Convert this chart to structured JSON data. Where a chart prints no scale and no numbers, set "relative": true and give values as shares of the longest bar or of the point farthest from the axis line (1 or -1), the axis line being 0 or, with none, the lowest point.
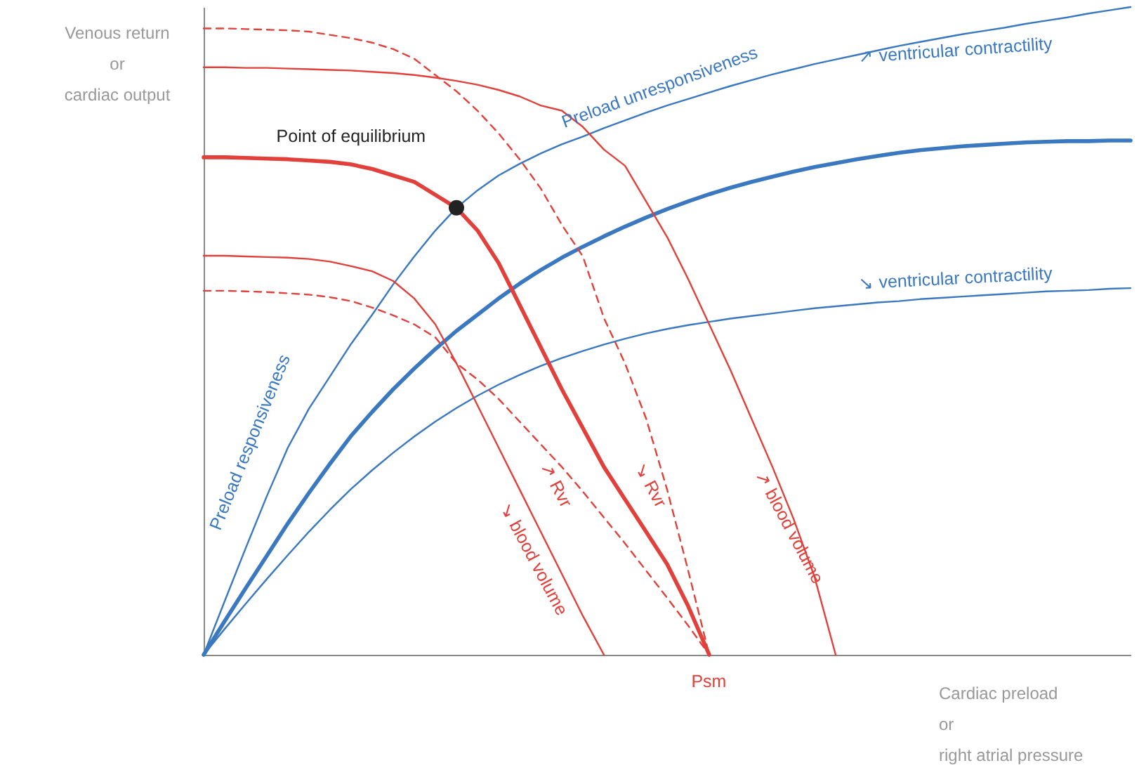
{
  "chart_data": {
    "type": "line",
    "relative": true,
    "xlabel": "Cardiac preload\nor\nright atrial pressure",
    "ylabel": "Venous return\nor\ncardiac output",
    "categories": [
      null,
      null,
      null,
      null,
      null,
      null,
      null,
      null,
      null,
      null,
      null,
      null,
      null,
      null,
      null,
      null,
      null,
      null,
      null,
      null,
      null,
      null,
      null,
      null,
      null,
      null,
      null,
      null,
      null,
      null,
      null,
      null,
      null,
      null,
      null,
      null,
      null,
      null,
      null,
      null,
      null,
      null,
      null,
      null,
      null
    ],
    "series": [
      {
        "color": "#3a78c0",
        "values": [
          0,
          0.083,
          0.165,
          0.245,
          0.32,
          0.38,
          0.43,
          0.48,
          0.525,
          0.572,
          0.615,
          0.655,
          0.69,
          0.717,
          0.74,
          0.758,
          0.774,
          0.788,
          0.8,
          0.813,
          0.825,
          0.837,
          0.848,
          0.858,
          0.868,
          0.878,
          0.887,
          0.896,
          0.904,
          0.912,
          0.919,
          0.926,
          0.933,
          0.94,
          0.946,
          0.952,
          0.958,
          0.963,
          0.968,
          0.974,
          0.979,
          0.984,
          0.99,
          0.995,
          1
        ]
      },
      {
        "color": "#3a78c0",
        "values": [
          0,
          0.052,
          0.103,
          0.153,
          0.203,
          0.25,
          0.295,
          0.338,
          0.375,
          0.41,
          0.442,
          0.472,
          0.5,
          0.525,
          0.55,
          0.573,
          0.594,
          0.613,
          0.63,
          0.646,
          0.661,
          0.675,
          0.688,
          0.7,
          0.711,
          0.721,
          0.73,
          0.738,
          0.746,
          0.753,
          0.759,
          0.765,
          0.77,
          0.775,
          0.779,
          0.782,
          0.785,
          0.787,
          0.789,
          0.791,
          0.792,
          0.793,
          0.793,
          0.794,
          0.794
        ]
      },
      {
        "color": "#3a78c0",
        "values": [
          0,
          0.04,
          0.079,
          0.117,
          0.154,
          0.19,
          0.224,
          0.256,
          0.285,
          0.312,
          0.337,
          0.36,
          0.381,
          0.4,
          0.417,
          0.432,
          0.446,
          0.458,
          0.469,
          0.479,
          0.488,
          0.496,
          0.503,
          0.509,
          0.514,
          0.519,
          0.523,
          0.527,
          0.531,
          0.535,
          0.538,
          0.541,
          0.544,
          0.546,
          0.549,
          0.551,
          0.553,
          0.555,
          0.557,
          0.559,
          0.561,
          0.562,
          0.563,
          0.565,
          0.566
        ]
      },
      {
        "color": "#e2403a",
        "values": [
          0.907,
          0.907,
          0.906,
          0.906,
          0.905,
          0.904,
          0.903,
          0.902,
          0.9,
          0.898,
          0.895,
          0.891,
          0.886,
          0.88,
          0.872,
          0.862,
          0.848,
          0.84,
          0.815,
          0.78,
          0.755,
          0.7,
          0.645,
          0.58,
          0.51,
          0.44,
          0.365,
          0.29,
          0.21,
          0.12,
          0,
          null,
          null,
          null,
          null,
          null,
          null,
          null,
          null,
          null,
          null,
          null,
          null,
          null,
          null
        ]
      },
      {
        "color": "#e2403a",
        "line_style": "dashed",
        "values": [
          0.967,
          0.967,
          0.966,
          0.965,
          0.964,
          0.962,
          0.957,
          0.952,
          0.945,
          0.935,
          0.92,
          0.895,
          0.87,
          0.84,
          0.805,
          0.765,
          0.72,
          0.664,
          0.615,
          0.52,
          0.45,
          0.365,
          0.255,
          0.13,
          0,
          null,
          null,
          null,
          null,
          null,
          null,
          null,
          null,
          null,
          null,
          null,
          null,
          null,
          null,
          null,
          null,
          null,
          null,
          null,
          null
        ]
      },
      {
        "color": "#e2403a",
        "values": [
          0.768,
          0.768,
          0.767,
          0.766,
          0.765,
          0.763,
          0.761,
          0.757,
          0.75,
          0.74,
          0.73,
          0.71,
          0.69,
          0.655,
          0.605,
          0.54,
          0.475,
          0.41,
          0.35,
          0.29,
          0.24,
          0.19,
          0.14,
          0.075,
          0,
          null,
          null,
          null,
          null,
          null,
          null,
          null,
          null,
          null,
          null,
          null,
          null,
          null,
          null,
          null,
          null,
          null,
          null,
          null,
          null
        ]
      },
      {
        "color": "#e2403a",
        "values": [
          0.616,
          0.616,
          0.615,
          0.614,
          0.613,
          0.611,
          0.607,
          0.6,
          0.592,
          0.577,
          0.55,
          0.51,
          0.45,
          0.385,
          0.32,
          0.255,
          0.19,
          0.125,
          0.06,
          0,
          null,
          null,
          null,
          null,
          null,
          null,
          null,
          null,
          null,
          null,
          null,
          null,
          null,
          null,
          null,
          null,
          null,
          null,
          null,
          null,
          null,
          null,
          null,
          null,
          null
        ]
      },
      {
        "color": "#e2403a",
        "line_style": "dashed",
        "values": [
          0.562,
          0.562,
          0.561,
          0.56,
          0.558,
          0.556,
          0.552,
          0.546,
          0.536,
          0.524,
          0.51,
          0.49,
          0.45,
          0.425,
          0.395,
          0.36,
          0.325,
          0.29,
          0.252,
          0.212,
          0.172,
          0.13,
          0.088,
          0.045,
          0,
          null,
          null,
          null,
          null,
          null,
          null,
          null,
          null,
          null,
          null,
          null,
          null,
          null,
          null,
          null,
          null,
          null,
          null,
          null,
          null
        ]
      },
      {
        "color": "#222222",
        "marker": "circle",
        "values": [
          null,
          null,
          null,
          null,
          null,
          null,
          null,
          null,
          null,
          null,
          null,
          null,
          0.69,
          null,
          null,
          null,
          null,
          null,
          null,
          null,
          null,
          null,
          null,
          null,
          null,
          null,
          null,
          null,
          null,
          null,
          null,
          null,
          null,
          null,
          null,
          null,
          null,
          null,
          null,
          null,
          null,
          null,
          null,
          null,
          null
        ]
      }
    ],
    "annotations": [
      "Point of equilibrium",
      "Preload unresponsiveness",
      "↗ ventricular contractility",
      "↘ ventricular contractility",
      "Preload responsiveness",
      "↘ blood volume",
      "↗ Rvr",
      "↘ Rvr",
      "↗ blood volume",
      "Psm"
    ]
  }
}
